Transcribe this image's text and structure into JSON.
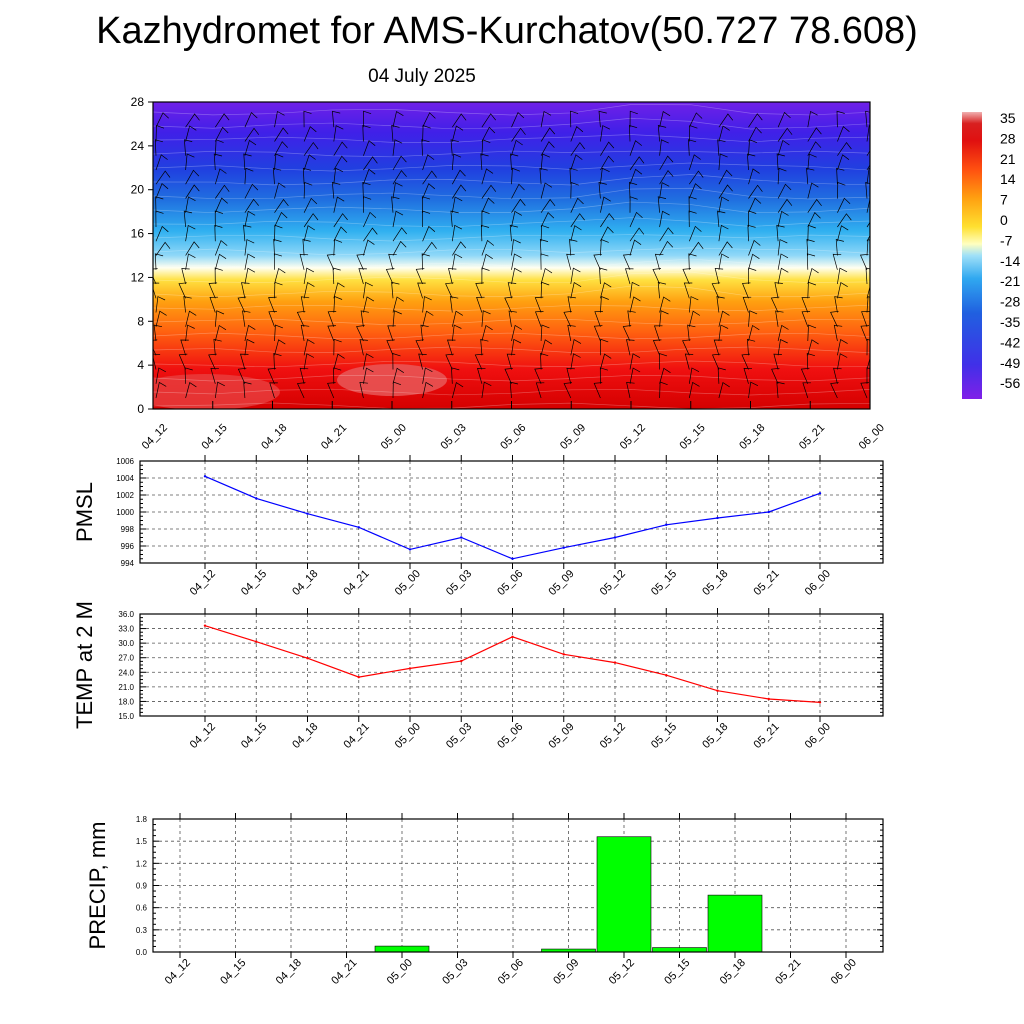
{
  "title": "Kazhydromet for AMS-Kurchatov(50.727 78.608)",
  "subtitle": "04 July 2025",
  "time_labels": [
    "04_12",
    "04_15",
    "04_18",
    "04_21",
    "05_00",
    "05_03",
    "05_06",
    "05_09",
    "05_12",
    "05_15",
    "05_18",
    "05_21",
    "06_00"
  ],
  "colors": {
    "pmsl_line": "#0000ff",
    "temp_line": "#ff0000",
    "precip_bar": "#00ff00",
    "wind_barb": "#000000"
  },
  "chart_data": [
    {
      "type": "heatmap",
      "name": "temperature-cross-section",
      "x": [
        "04_12",
        "04_15",
        "04_18",
        "04_21",
        "05_00",
        "05_03",
        "05_06",
        "05_09",
        "05_12",
        "05_15",
        "05_18",
        "05_21",
        "06_00"
      ],
      "y_ticks": [
        0,
        4,
        8,
        12,
        16,
        20,
        24,
        28
      ],
      "ylim": [
        0,
        28
      ],
      "colorbar": {
        "labels": [
          "35",
          "28",
          "21",
          "14",
          "7",
          "0",
          "-7",
          "-14",
          "-21",
          "-28",
          "-35",
          "-42",
          "-49",
          "-56"
        ],
        "min": -63,
        "max": 42
      },
      "overlay": "wind barbs",
      "freezing_level": 13.2
    },
    {
      "type": "line",
      "ylabel": "PMSL",
      "x": [
        "04_12",
        "04_15",
        "04_18",
        "04_21",
        "05_00",
        "05_03",
        "05_06",
        "05_09",
        "05_12",
        "05_15",
        "05_18",
        "05_21",
        "06_00"
      ],
      "values": [
        1004.2,
        1001.6,
        999.8,
        998.2,
        995.6,
        997.0,
        994.5,
        995.8,
        997.0,
        998.5,
        999.3,
        1000.0,
        1002.2
      ],
      "ylim": [
        994,
        1006
      ],
      "yticks": [
        "1006",
        "1004",
        "1002",
        "1000",
        "998",
        "996",
        "994"
      ],
      "grid": true
    },
    {
      "type": "line",
      "ylabel": "TEMP at 2 M",
      "x": [
        "04_12",
        "04_15",
        "04_18",
        "04_21",
        "05_00",
        "05_03",
        "05_06",
        "05_09",
        "05_12",
        "05_15",
        "05_18",
        "05_21",
        "06_00"
      ],
      "values": [
        33.6,
        30.3,
        26.9,
        23.0,
        24.8,
        26.3,
        31.3,
        27.7,
        26.0,
        23.4,
        20.2,
        18.5,
        17.8
      ],
      "ylim": [
        15,
        36
      ],
      "yticks": [
        "36.0",
        "33.0",
        "30.0",
        "27.0",
        "24.0",
        "21.0",
        "18.0",
        "15.0"
      ],
      "grid": true
    },
    {
      "type": "bar",
      "ylabel": "PRECIP, mm",
      "x": [
        "04_12",
        "04_15",
        "04_18",
        "04_21",
        "05_00",
        "05_03",
        "05_06",
        "05_09",
        "05_12",
        "05_15",
        "05_18",
        "05_21",
        "06_00"
      ],
      "values": [
        0,
        0,
        0,
        0,
        0.08,
        0,
        0,
        0.04,
        1.56,
        0.06,
        0.77,
        0,
        0
      ],
      "ylim": [
        0,
        1.8
      ],
      "yticks": [
        "1.8",
        "1.5",
        "1.2",
        "0.9",
        "0.6",
        "0.3",
        "0.0"
      ],
      "grid": true
    }
  ]
}
